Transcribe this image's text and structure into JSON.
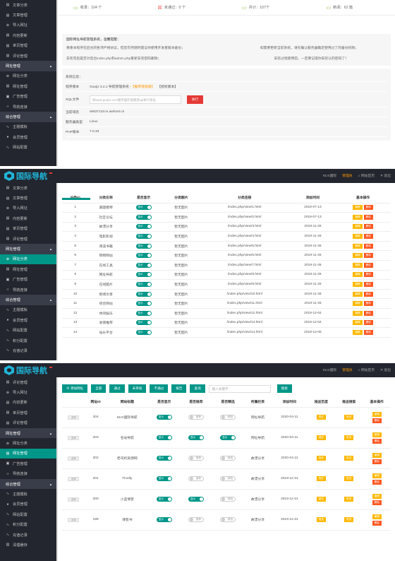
{
  "p1": {
    "sidebar": [
      {
        "icon": "file-icon",
        "label": "文章分类",
        "type": "item"
      },
      {
        "icon": "file-icon",
        "label": "文章管理",
        "type": "item"
      },
      {
        "icon": "plus-circle-icon",
        "label": "导入网址",
        "type": "item"
      },
      {
        "icon": "file-icon",
        "label": "内容更新",
        "type": "item"
      },
      {
        "icon": "file-icon",
        "label": "单页管理",
        "type": "item"
      },
      {
        "icon": "file-icon",
        "label": "评论管理",
        "type": "item"
      },
      {
        "icon": "",
        "label": "网址管理",
        "type": "group"
      },
      {
        "icon": "plus-circle-icon",
        "label": "网址分类",
        "type": "item"
      },
      {
        "icon": "file-icon",
        "label": "网址管理",
        "type": "item"
      },
      {
        "icon": "image-icon",
        "label": "广告管理",
        "type": "item"
      },
      {
        "icon": "code-icon",
        "label": "导航连接",
        "type": "item"
      },
      {
        "icon": "",
        "label": "综合管理",
        "type": "group"
      },
      {
        "icon": "pulse-icon",
        "label": "主题模板",
        "type": "item"
      },
      {
        "icon": "user-icon",
        "label": "会员管理",
        "type": "item"
      },
      {
        "icon": "pulse-icon",
        "label": "网站配置",
        "type": "item"
      }
    ],
    "stats": [
      {
        "icon": "inbox-icon",
        "text": "收录：104 个"
      },
      {
        "icon": "x-box-icon",
        "text": "未通过：0 个"
      },
      {
        "icon": "inbox-icon",
        "text": "共计：107个"
      },
      {
        "icon": "inbox-icon",
        "text": "新闻：62 篇"
      }
    ],
    "notice": {
      "title": "国际网址导航管理系统，温馨提醒：",
      "left1": "尊重本程序在后台的各项严格协议，但您仍然随时建议你使用开发者版本备份；",
      "right1": "如需要更新当前系统，请先确认服务器确定使用过了的备份权限；",
      "left2": "安装完后是否对后台index.php和admin.php重新安装密码删除；",
      "right2": "安装过程使用前，一定要记得你安装认的密码了！"
    },
    "sys": {
      "title": "系统信息：",
      "version_k": "程序版本",
      "version_v": "Guojiz 3.2.1 导航管理系统 - ",
      "version_link": "【推荐增值版】",
      "version_tail": "【授权版本】",
      "sql_k": "SQL文件",
      "sql_placeholder": "如www.guojiz.com服务器存放路径sql执行地址",
      "sql_btn": "执行",
      "domain_k": "当前域名",
      "domain_v": "s6637133.m.awhost.cn",
      "server_k": "服务器类型",
      "server_v": "Linux",
      "php_k": "PHP版本",
      "php_v": "7.0.33"
    }
  },
  "p2": {
    "logo": "国际导航",
    "top_right": {
      "site": "91IS国际",
      "warn": "管理员",
      "home": "网站首页",
      "exit": "退出"
    },
    "sidebar": [
      {
        "icon": "file-icon",
        "label": "文章分类",
        "type": "item"
      },
      {
        "icon": "file-icon",
        "label": "文章管理",
        "type": "item"
      },
      {
        "icon": "plus-circle-icon",
        "label": "导入网址",
        "type": "item"
      },
      {
        "icon": "file-icon",
        "label": "内容更新",
        "type": "item"
      },
      {
        "icon": "file-icon",
        "label": "单页管理",
        "type": "item"
      },
      {
        "icon": "file-icon",
        "label": "评论管理",
        "type": "item"
      },
      {
        "icon": "",
        "label": "网址管理",
        "type": "group"
      },
      {
        "icon": "plus-circle-icon",
        "label": "网址分类",
        "type": "active"
      },
      {
        "icon": "file-icon",
        "label": "网址管理",
        "type": "item"
      },
      {
        "icon": "image-icon",
        "label": "广告管理",
        "type": "item"
      },
      {
        "icon": "code-icon",
        "label": "导航连接",
        "type": "item"
      },
      {
        "icon": "",
        "label": "综合管理",
        "type": "group"
      },
      {
        "icon": "pulse-icon",
        "label": "主题模板",
        "type": "item"
      },
      {
        "icon": "user-icon",
        "label": "会员管理",
        "type": "item"
      },
      {
        "icon": "pulse-icon",
        "label": "网站配置",
        "type": "item"
      },
      {
        "icon": "pulse-icon",
        "label": "积分配置",
        "type": "item"
      },
      {
        "icon": "pulse-icon",
        "label": "充值记录",
        "type": "item"
      }
    ],
    "headers": [
      "分类ID",
      "分类名称",
      "是否显示",
      "分类图片",
      "分类连接",
      "添加时间",
      "基本操作"
    ],
    "toggle_on": "显示",
    "edit": "编辑",
    "del": "删除",
    "rows": [
      [
        "1",
        "美图模特",
        "暂无图片",
        "/index.php/view/1.html",
        "2019-07-13"
      ],
      [
        "2",
        "社区论坛",
        "暂无图片",
        "/index.php/view/2.html",
        "2019-07-13"
      ],
      [
        "3",
        "故漂分享",
        "暂无图片",
        "/index.php/view/3.html",
        "2019-11-26"
      ],
      [
        "4",
        "电影影视",
        "暂无图片",
        "/index.php/view/4.html",
        "2019-11-26"
      ],
      [
        "5",
        "阅读书籍",
        "暂无图片",
        "/index.php/view/5.html",
        "2019-11-26"
      ],
      [
        "6",
        "购物网站",
        "暂无图片",
        "/index.php/view/6.html",
        "2019-11-26"
      ],
      [
        "7",
        "在线工具",
        "暂无图片",
        "/index.php/view/7.html",
        "2019-11-26"
      ],
      [
        "8",
        "网址导航",
        "暂无图片",
        "/index.php/view/8.html",
        "2019-11-26"
      ],
      [
        "9",
        "在线图片",
        "暂无图片",
        "/index.php/view/9.html",
        "2019-11-26"
      ],
      [
        "10",
        "新闻文章",
        "暂无图片",
        "/index.php/view/10.html",
        "2019-11-26"
      ],
      [
        "11",
        "综合网站",
        "暂无图片",
        "/index.php/view/11.html",
        "2019-11-26"
      ],
      [
        "12",
        "休闲娱乐",
        "暂无图片",
        "/index.php/view/12.html",
        "2019-12-04"
      ],
      [
        "13",
        "发情推荐",
        "暂无图片",
        "/index.php/view/13.html",
        "2019-12-04"
      ],
      [
        "14",
        "站长平台",
        "暂无图片",
        "/index.php/view/14.html",
        "2019-12-05"
      ]
    ]
  },
  "p3": {
    "logo": "国际导航",
    "top_right": {
      "site": "91IS国际",
      "warn": "管理员",
      "home": "网站首页",
      "exit": "退出"
    },
    "sidebar": [
      {
        "icon": "file-icon",
        "label": "评论管理",
        "type": "item"
      },
      {
        "icon": "plus-circle-icon",
        "label": "导入网址",
        "type": "item"
      },
      {
        "icon": "file-icon",
        "label": "内容更新",
        "type": "item"
      },
      {
        "icon": "file-icon",
        "label": "单页管理",
        "type": "item"
      },
      {
        "icon": "file-icon",
        "label": "评论管理",
        "type": "item"
      },
      {
        "icon": "",
        "label": "网址管理",
        "type": "group"
      },
      {
        "icon": "plus-circle-icon",
        "label": "网址分类",
        "type": "item"
      },
      {
        "icon": "file-icon",
        "label": "网址管理",
        "type": "active"
      },
      {
        "icon": "image-icon",
        "label": "广告管理",
        "type": "item"
      },
      {
        "icon": "code-icon",
        "label": "导航连接",
        "type": "item"
      },
      {
        "icon": "",
        "label": "综合管理",
        "type": "group"
      },
      {
        "icon": "pulse-icon",
        "label": "主题模板",
        "type": "item"
      },
      {
        "icon": "user-icon",
        "label": "会员管理",
        "type": "item"
      },
      {
        "icon": "pulse-icon",
        "label": "网站配置",
        "type": "item"
      },
      {
        "icon": "pulse-icon",
        "label": "积分配置",
        "type": "item"
      },
      {
        "icon": "pulse-icon",
        "label": "充值记录",
        "type": "item"
      },
      {
        "icon": "trash-icon",
        "label": "清理缓存",
        "type": "item"
      }
    ],
    "toolbar": [
      "添加网址",
      "全部",
      "通过",
      "未审核",
      "不通过",
      "报告",
      "查询"
    ],
    "search_placeholder": "输入关键字",
    "search_btn": "搜索",
    "headers": [
      "",
      "网址ID",
      "网站标题",
      "是否显示",
      "是否推荐",
      "是否精选",
      "所属栏目",
      "添加时间",
      "推送百度",
      "推送搜索",
      "基本操作"
    ],
    "chk": "选择",
    "toggle_on": "显示",
    "toggle_off": "推荐",
    "toggle_off2": "精选",
    "push": "推送",
    "edit": "编辑",
    "del": "删除",
    "rows": [
      {
        "id": "204",
        "title": "91IS国际导航",
        "rec": false,
        "sel": false,
        "col": "网址导航",
        "date": "2020-04-11"
      },
      {
        "id": "203",
        "title": "名站导航",
        "rec": true,
        "sel": true,
        "col": "网址导航",
        "date": "2020-04-11"
      },
      {
        "id": "202",
        "title": "老司机资源网",
        "rec": false,
        "sel": false,
        "col": "故漂分享",
        "date": "2020-04-11"
      },
      {
        "id": "201",
        "title": "Finally",
        "rec": false,
        "sel": false,
        "col": "故漂分享",
        "date": "2019-12-31"
      },
      {
        "id": "200",
        "title": "小蓝博客",
        "rec": true,
        "sel": false,
        "col": "故漂分享",
        "date": "2019-12-31"
      },
      {
        "id": "199",
        "title": "博客书",
        "rec": false,
        "sel": false,
        "col": "故漂分享",
        "date": "2019-12-31"
      }
    ]
  }
}
